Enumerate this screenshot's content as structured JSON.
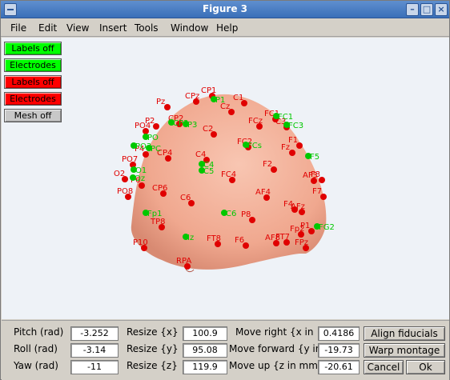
{
  "window": {
    "title": "Figure 3"
  },
  "menu": [
    "File",
    "Edit",
    "View",
    "Insert",
    "Tools",
    "Window",
    "Help"
  ],
  "toggles": [
    {
      "label": "Labels off",
      "color": "#00ff00"
    },
    {
      "label": "Electrodes",
      "color": "#00ff00"
    },
    {
      "label": "Labels off",
      "color": "#ff0000"
    },
    {
      "label": "Electrodes",
      "color": "#ff0000"
    },
    {
      "label": "Mesh off",
      "color": "#c8c8c8"
    }
  ],
  "controls": {
    "pitch": {
      "label": "Pitch (rad)",
      "value": "-3.252"
    },
    "roll": {
      "label": "Roll (rad)",
      "value": "-3.14"
    },
    "yaw": {
      "label": "Yaw (rad)",
      "value": "-11"
    },
    "resize_x": {
      "label": "Resize {x}",
      "value": "100.9"
    },
    "resize_y": {
      "label": "Resize {y}",
      "value": "95.08"
    },
    "resize_z": {
      "label": "Resize {z}",
      "value": "119.9"
    },
    "move_right": {
      "label": "Move right {x in",
      "value": "0.4186"
    },
    "move_forward": {
      "label": "Move forward {y in",
      "value": "-19.73"
    },
    "move_up": {
      "label": "Move up {z in mm)",
      "value": "-20.61"
    }
  },
  "buttons": {
    "align": "Align fiducials",
    "warp": "Warp montage",
    "cancel": "Cancel",
    "ok": "Ok"
  },
  "colors": {
    "head": "#f4b09a",
    "electrode_red": "#e00000",
    "electrode_green": "#00c800"
  },
  "red_labels": [
    "CP1",
    "CPz",
    "Pz",
    "P2",
    "PO4",
    "CP2",
    "C2",
    "Cz",
    "C1",
    "FC1",
    "FCz",
    "C3",
    "FC2",
    "CP4",
    "C4",
    "F1",
    "Fz",
    "F3",
    "PO7",
    "P4",
    "O2",
    "P6",
    "CP6",
    "PO8",
    "FC4",
    "F2",
    "AF3",
    "F4",
    "C6",
    "F7",
    "P8",
    "TP8",
    "P1",
    "AF4",
    "FT8",
    "AFz",
    "FT7",
    "P10",
    "F6",
    "AF8",
    "Fp2",
    "FPz",
    "RPA"
  ],
  "green_labels": [
    "P1",
    "P3",
    "C5",
    "C6",
    "C4",
    "PO",
    "Oz",
    "PO3",
    "PC",
    "CP3",
    "FC1",
    "FC3",
    "F5",
    "FCs",
    "O1",
    "Iz",
    "Fp1",
    "FG2"
  ]
}
